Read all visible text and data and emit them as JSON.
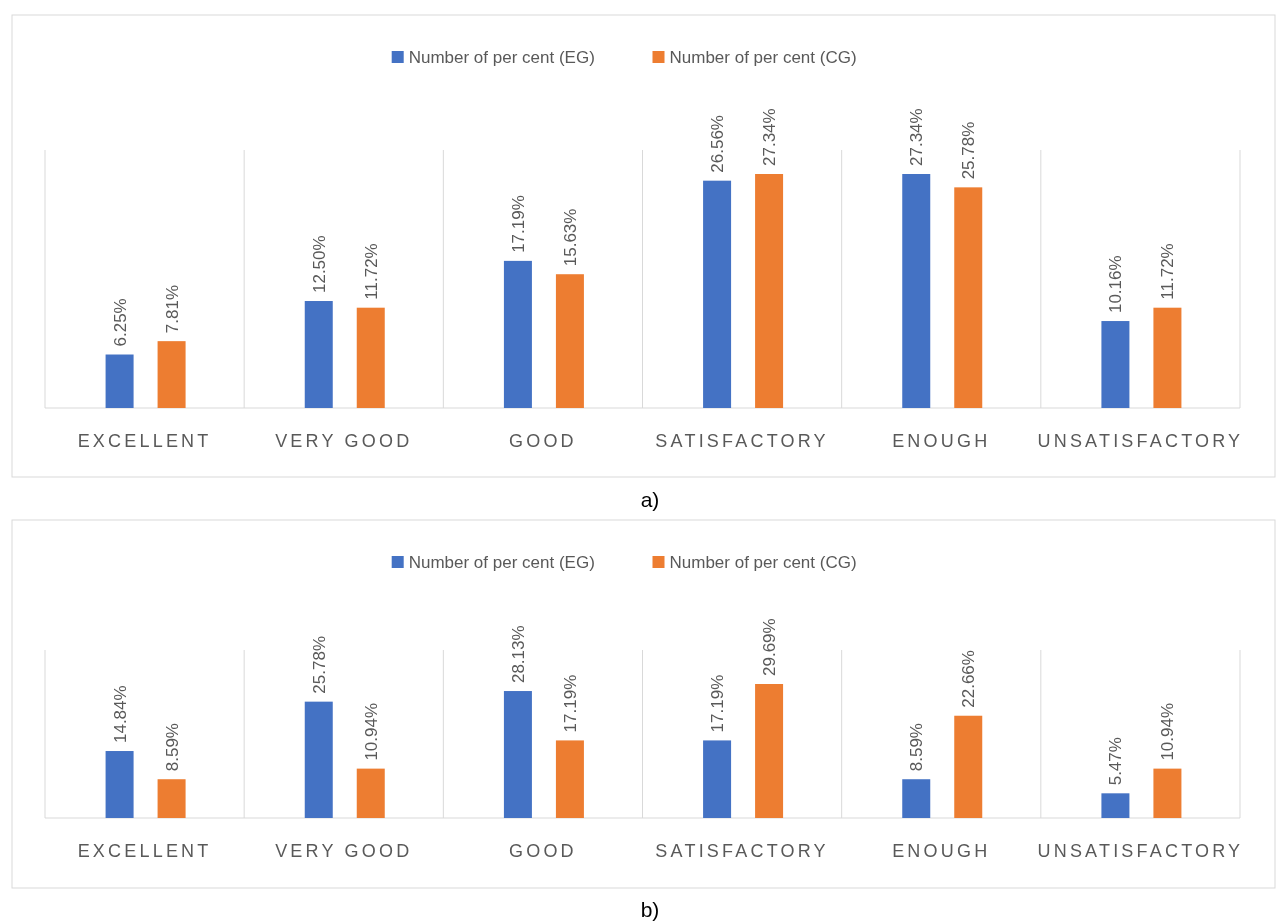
{
  "chart_data": [
    {
      "type": "bar",
      "categories": [
        "EXCELLENT",
        "VERY GOOD",
        "GOOD",
        "SATISFACTORY",
        "ENOUGH",
        "UNSATISFACTORY"
      ],
      "series": [
        {
          "name": "Number of per cent (EG)",
          "color": "#4472c4",
          "values": [
            6.25,
            12.5,
            17.19,
            26.56,
            27.34,
            10.16
          ],
          "value_labels": [
            "6.25%",
            "12.50%",
            "17.19%",
            "26.56%",
            "27.34%",
            "10.16%"
          ]
        },
        {
          "name": "Number of per cent (CG)",
          "color": "#ed7d31",
          "values": [
            7.81,
            11.72,
            15.63,
            27.34,
            25.78,
            11.72
          ],
          "value_labels": [
            "7.81%",
            "11.72%",
            "15.63%",
            "27.34%",
            "25.78%",
            "11.72%"
          ]
        }
      ],
      "legend": "top",
      "grid": "x",
      "annotations": [
        "a)"
      ]
    },
    {
      "type": "bar",
      "categories": [
        "EXCELLENT",
        "VERY GOOD",
        "GOOD",
        "SATISFACTORY",
        "ENOUGH",
        "UNSATISFACTORY"
      ],
      "series": [
        {
          "name": "Number of per cent (EG)",
          "color": "#4472c4",
          "values": [
            14.84,
            25.78,
            28.13,
            17.19,
            8.59,
            5.47
          ],
          "value_labels": [
            "14.84%",
            "25.78%",
            "28.13%",
            "17.19%",
            "8.59%",
            "5.47%"
          ]
        },
        {
          "name": "Number of per cent (CG)",
          "color": "#ed7d31",
          "values": [
            8.59,
            10.94,
            17.19,
            29.69,
            22.66,
            10.94
          ],
          "value_labels": [
            "8.59%",
            "10.94%",
            "17.19%",
            "29.69%",
            "22.66%",
            "10.94%"
          ]
        }
      ],
      "legend": "top",
      "grid": "x",
      "annotations": [
        "b)"
      ]
    }
  ]
}
